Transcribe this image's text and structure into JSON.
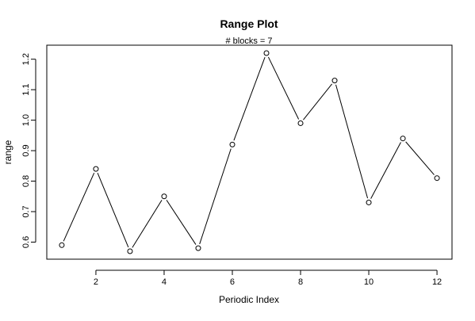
{
  "chart_data": {
    "type": "line",
    "title": "Range Plot",
    "subtitle": "# blocks =  7",
    "xlabel": "Periodic Index",
    "ylabel": "range",
    "x": [
      1,
      2,
      3,
      4,
      5,
      6,
      7,
      8,
      9,
      10,
      11,
      12
    ],
    "series": [
      {
        "values": [
          0.59,
          0.84,
          0.57,
          0.75,
          0.58,
          0.92,
          1.22,
          0.99,
          1.13,
          0.73,
          0.94,
          0.81
        ]
      }
    ],
    "xlim": [
      0.56,
      12.44
    ],
    "ylim": [
      0.544,
      1.246
    ],
    "xticks": [
      2,
      4,
      6,
      8,
      10,
      12
    ],
    "xtick_labels": [
      "2",
      "4",
      "6",
      "8",
      "10",
      "12"
    ],
    "yticks": [
      0.6,
      0.7,
      0.8,
      0.9,
      1.0,
      1.1,
      1.2
    ],
    "ytick_labels": [
      "0.6",
      "0.7",
      "0.8",
      "0.9",
      "1.0",
      "1.1",
      "1.2"
    ],
    "grid": false,
    "markers": "open-circle",
    "colors": {
      "line": "#000000",
      "marker_stroke": "#000000",
      "marker_fill": "#ffffff",
      "axis": "#000000"
    }
  }
}
